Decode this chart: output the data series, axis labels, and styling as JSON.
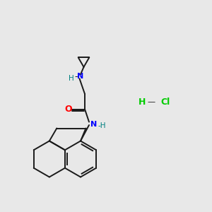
{
  "background_color": "#e8e8e8",
  "bond_color": "#1a1a1a",
  "nitrogen_color": "#0000ff",
  "oxygen_color": "#ff0000",
  "hcl_color": "#00cc00",
  "nh_color": "#008080",
  "line_width": 1.4,
  "figsize": [
    3.0,
    3.0
  ],
  "dpi": 100,
  "xlim": [
    0,
    10
  ],
  "ylim": [
    0,
    10
  ]
}
